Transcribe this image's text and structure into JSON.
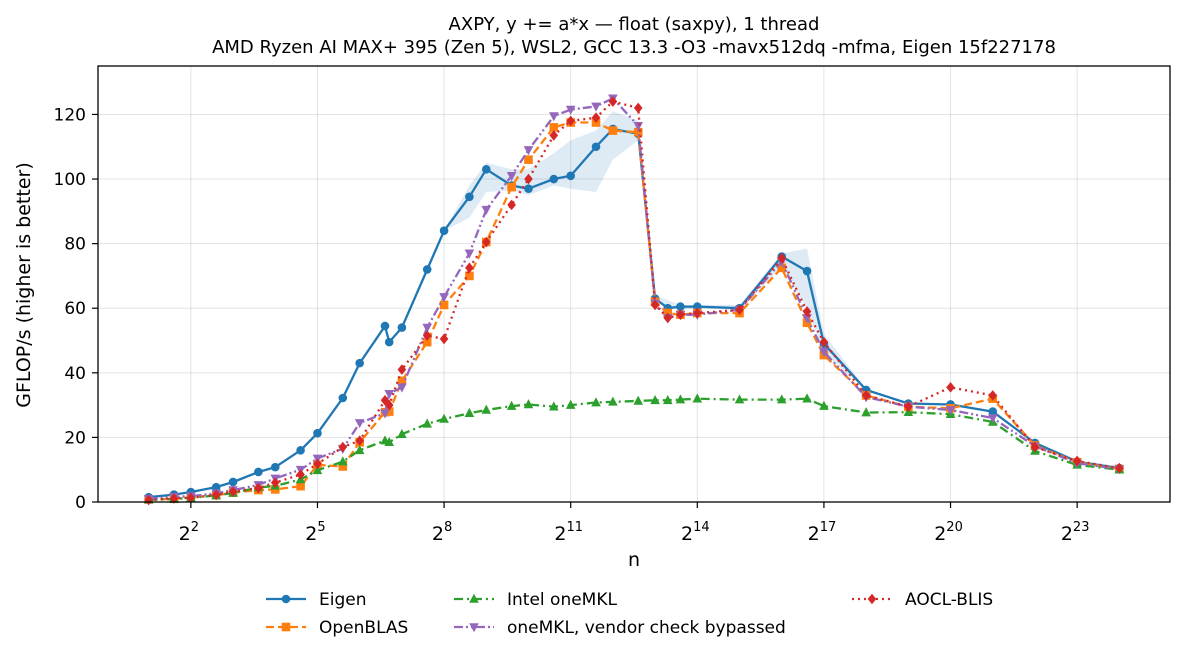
{
  "chart_data": {
    "type": "line",
    "title": "AXPY, y += a*x — float (saxpy), 1 thread",
    "subtitle": "AMD Ryzen AI MAX+ 395 (Zen 5), WSL2, GCC 13.3 -O3 -mavx512dq -mfma, Eigen 15f227178",
    "xlabel": "n",
    "ylabel": "GFLOP/s (higher is better)",
    "xscale": "log2",
    "xlim_log2": [
      -0.2,
      25.2
    ],
    "ylim": [
      0,
      135
    ],
    "x_tick_labels": [
      {
        "exp": 2,
        "base": "2",
        "sup": "2"
      },
      {
        "exp": 5,
        "base": "2",
        "sup": "5"
      },
      {
        "exp": 8,
        "base": "2",
        "sup": "8"
      },
      {
        "exp": 11,
        "base": "2",
        "sup": "11"
      },
      {
        "exp": 14,
        "base": "2",
        "sup": "14"
      },
      {
        "exp": 17,
        "base": "2",
        "sup": "17"
      },
      {
        "exp": 20,
        "base": "2",
        "sup": "20"
      },
      {
        "exp": 23,
        "base": "2",
        "sup": "23"
      }
    ],
    "y_ticks": [
      0,
      20,
      40,
      60,
      80,
      100,
      120
    ],
    "grid": true,
    "legend_position": "bottom-center",
    "series": [
      {
        "name": "Eigen",
        "color": "#1f77b4",
        "marker": "circle",
        "dash": "solid",
        "points": [
          [
            1.0,
            1.5
          ],
          [
            1.6,
            2.3
          ],
          [
            2.0,
            3.1
          ],
          [
            2.6,
            4.6
          ],
          [
            3.0,
            6.2
          ],
          [
            3.6,
            9.3
          ],
          [
            4.0,
            10.8
          ],
          [
            4.6,
            16.0
          ],
          [
            5.0,
            21.3
          ],
          [
            5.6,
            32.2
          ],
          [
            6.0,
            43.0
          ],
          [
            6.6,
            54.5
          ],
          [
            6.7,
            49.5
          ],
          [
            7.0,
            54.0
          ],
          [
            7.6,
            72.0
          ],
          [
            8.0,
            84.0
          ],
          [
            8.6,
            94.5
          ],
          [
            9.0,
            103.0
          ],
          [
            9.6,
            98.0
          ],
          [
            10.0,
            97.0
          ],
          [
            10.6,
            100.0
          ],
          [
            11.0,
            101.0
          ],
          [
            11.6,
            110.0
          ],
          [
            12.0,
            115.5
          ],
          [
            12.6,
            114.0
          ],
          [
            13.0,
            63.0
          ],
          [
            13.3,
            60.0
          ],
          [
            13.6,
            60.5
          ],
          [
            14.0,
            60.5
          ],
          [
            15.0,
            60.0
          ],
          [
            16.0,
            76.0
          ],
          [
            16.6,
            71.5
          ],
          [
            17.0,
            49.0
          ],
          [
            18.0,
            34.7
          ],
          [
            19.0,
            30.5
          ],
          [
            20.0,
            30.2
          ],
          [
            21.0,
            28.0
          ],
          [
            22.0,
            18.3
          ],
          [
            23.0,
            12.5
          ],
          [
            24.0,
            10.5
          ]
        ]
      },
      {
        "name": "OpenBLAS",
        "color": "#ff7f0e",
        "marker": "square",
        "dash": "dashed",
        "points": [
          [
            1.0,
            0.8
          ],
          [
            1.6,
            1.0
          ],
          [
            2.0,
            1.4
          ],
          [
            2.6,
            2.1
          ],
          [
            3.0,
            2.9
          ],
          [
            3.6,
            3.7
          ],
          [
            4.0,
            3.9
          ],
          [
            4.6,
            4.9
          ],
          [
            5.0,
            11.5
          ],
          [
            5.6,
            11.0
          ],
          [
            6.0,
            18.5
          ],
          [
            6.6,
            27.8
          ],
          [
            6.7,
            28.0
          ],
          [
            7.0,
            37.5
          ],
          [
            7.6,
            49.5
          ],
          [
            8.0,
            61.0
          ],
          [
            8.6,
            70.0
          ],
          [
            9.0,
            80.5
          ],
          [
            9.6,
            97.5
          ],
          [
            10.0,
            106.0
          ],
          [
            10.6,
            116.0
          ],
          [
            11.0,
            117.5
          ],
          [
            11.6,
            117.5
          ],
          [
            12.0,
            115.0
          ],
          [
            12.6,
            114.5
          ],
          [
            13.0,
            62.0
          ],
          [
            13.3,
            58.5
          ],
          [
            13.6,
            58.0
          ],
          [
            14.0,
            58.5
          ],
          [
            15.0,
            58.5
          ],
          [
            16.0,
            72.5
          ],
          [
            16.6,
            55.5
          ],
          [
            17.0,
            45.5
          ],
          [
            18.0,
            33.0
          ],
          [
            19.0,
            29.5
          ],
          [
            20.0,
            29.0
          ],
          [
            21.0,
            32.0
          ],
          [
            22.0,
            17.5
          ],
          [
            23.0,
            12.3
          ],
          [
            24.0,
            10.2
          ]
        ]
      },
      {
        "name": "Intel oneMKL",
        "color": "#2ca02c",
        "marker": "triangle-up",
        "dash": "dashdot",
        "points": [
          [
            1.0,
            0.7
          ],
          [
            1.6,
            0.9
          ],
          [
            2.0,
            1.3
          ],
          [
            2.6,
            2.0
          ],
          [
            3.0,
            2.8
          ],
          [
            3.6,
            4.5
          ],
          [
            4.0,
            5.0
          ],
          [
            4.6,
            7.0
          ],
          [
            5.0,
            9.8
          ],
          [
            5.6,
            12.5
          ],
          [
            6.0,
            16.0
          ],
          [
            6.6,
            19.0
          ],
          [
            6.7,
            18.5
          ],
          [
            7.0,
            21.0
          ],
          [
            7.6,
            24.2
          ],
          [
            8.0,
            25.7
          ],
          [
            8.6,
            27.5
          ],
          [
            9.0,
            28.5
          ],
          [
            9.6,
            29.7
          ],
          [
            10.0,
            30.2
          ],
          [
            10.6,
            29.5
          ],
          [
            11.0,
            30.0
          ],
          [
            11.6,
            30.8
          ],
          [
            12.0,
            31.0
          ],
          [
            12.6,
            31.3
          ],
          [
            13.0,
            31.5
          ],
          [
            13.3,
            31.5
          ],
          [
            13.6,
            31.7
          ],
          [
            14.0,
            32.0
          ],
          [
            15.0,
            31.7
          ],
          [
            16.0,
            31.7
          ],
          [
            16.6,
            32.0
          ],
          [
            17.0,
            29.7
          ],
          [
            18.0,
            27.7
          ],
          [
            19.0,
            27.8
          ],
          [
            20.0,
            27.2
          ],
          [
            21.0,
            24.8
          ],
          [
            22.0,
            15.8
          ],
          [
            23.0,
            11.5
          ],
          [
            24.0,
            10.0
          ]
        ]
      },
      {
        "name": "oneMKL, vendor check bypassed",
        "color": "#9467bd",
        "marker": "triangle-down",
        "dash": "dashdotdot",
        "points": [
          [
            1.0,
            1.0
          ],
          [
            1.6,
            1.6
          ],
          [
            2.0,
            1.8
          ],
          [
            2.6,
            2.7
          ],
          [
            3.0,
            3.7
          ],
          [
            3.6,
            5.3
          ],
          [
            4.0,
            7.3
          ],
          [
            4.6,
            10.0
          ],
          [
            5.0,
            13.5
          ],
          [
            5.6,
            16.5
          ],
          [
            6.0,
            24.5
          ],
          [
            6.6,
            27.5
          ],
          [
            6.7,
            33.5
          ],
          [
            7.0,
            35.5
          ],
          [
            7.6,
            54.0
          ],
          [
            8.0,
            63.5
          ],
          [
            8.6,
            77.0
          ],
          [
            9.0,
            90.5
          ],
          [
            9.6,
            101.0
          ],
          [
            10.0,
            109.0
          ],
          [
            10.6,
            119.5
          ],
          [
            11.0,
            121.5
          ],
          [
            11.6,
            122.5
          ],
          [
            12.0,
            125.0
          ],
          [
            12.6,
            116.5
          ],
          [
            13.0,
            61.5
          ],
          [
            13.3,
            57.0
          ],
          [
            13.6,
            58.0
          ],
          [
            14.0,
            58.0
          ],
          [
            15.0,
            59.5
          ],
          [
            16.0,
            74.5
          ],
          [
            16.6,
            57.0
          ],
          [
            17.0,
            46.5
          ],
          [
            18.0,
            32.5
          ],
          [
            19.0,
            29.5
          ],
          [
            20.0,
            28.5
          ],
          [
            21.0,
            26.0
          ],
          [
            22.0,
            17.3
          ],
          [
            23.0,
            12.0
          ],
          [
            24.0,
            10.2
          ]
        ]
      },
      {
        "name": "AOCL-BLIS",
        "color": "#d62728",
        "marker": "diamond",
        "dash": "dotted",
        "points": [
          [
            1.0,
            0.6
          ],
          [
            1.6,
            1.1
          ],
          [
            2.0,
            1.3
          ],
          [
            2.6,
            2.2
          ],
          [
            3.0,
            3.2
          ],
          [
            3.6,
            4.3
          ],
          [
            4.0,
            6.0
          ],
          [
            4.6,
            8.5
          ],
          [
            5.0,
            11.8
          ],
          [
            5.6,
            17.0
          ],
          [
            6.0,
            19.0
          ],
          [
            6.6,
            31.5
          ],
          [
            6.7,
            30.0
          ],
          [
            7.0,
            41.0
          ],
          [
            7.6,
            51.5
          ],
          [
            8.0,
            50.5
          ],
          [
            8.6,
            72.5
          ],
          [
            9.0,
            80.5
          ],
          [
            9.6,
            92.0
          ],
          [
            10.0,
            100.0
          ],
          [
            10.6,
            113.5
          ],
          [
            11.0,
            118.0
          ],
          [
            11.6,
            119.0
          ],
          [
            12.0,
            124.0
          ],
          [
            12.6,
            122.0
          ],
          [
            13.0,
            61.0
          ],
          [
            13.3,
            57.0
          ],
          [
            13.6,
            58.0
          ],
          [
            14.0,
            58.5
          ],
          [
            15.0,
            59.5
          ],
          [
            16.0,
            75.5
          ],
          [
            16.6,
            59.0
          ],
          [
            17.0,
            49.5
          ],
          [
            18.0,
            33.0
          ],
          [
            19.0,
            29.5
          ],
          [
            20.0,
            35.5
          ],
          [
            21.0,
            33.0
          ],
          [
            22.0,
            17.0
          ],
          [
            23.0,
            12.7
          ],
          [
            24.0,
            10.5
          ]
        ]
      }
    ],
    "eigen_band": {
      "upper": [
        [
          8.0,
          84.0
        ],
        [
          8.6,
          98.0
        ],
        [
          9.0,
          105.0
        ],
        [
          9.6,
          103.0
        ],
        [
          10.0,
          103.0
        ],
        [
          10.6,
          108.0
        ],
        [
          11.0,
          112.0
        ],
        [
          11.6,
          115.0
        ],
        [
          12.0,
          121.0
        ],
        [
          12.6,
          118.0
        ],
        [
          13.0,
          64.0
        ],
        [
          13.6,
          61.0
        ],
        [
          14.0,
          61.0
        ],
        [
          15.0,
          61.0
        ],
        [
          16.0,
          77.0
        ],
        [
          16.6,
          78.5
        ],
        [
          17.0,
          52.0
        ],
        [
          18.0,
          35.0
        ]
      ],
      "lower": [
        [
          18.0,
          34.5
        ],
        [
          17.0,
          46.0
        ],
        [
          16.6,
          60.0
        ],
        [
          16.0,
          73.0
        ],
        [
          15.0,
          59.5
        ],
        [
          14.0,
          60.0
        ],
        [
          13.6,
          59.5
        ],
        [
          13.0,
          62.0
        ],
        [
          12.6,
          112.0
        ],
        [
          12.0,
          106.0
        ],
        [
          11.6,
          96.0
        ],
        [
          11.0,
          97.0
        ],
        [
          10.6,
          98.0
        ],
        [
          10.0,
          95.0
        ],
        [
          9.6,
          96.5
        ],
        [
          9.0,
          96.0
        ],
        [
          8.6,
          88.0
        ],
        [
          8.0,
          84.0
        ]
      ]
    }
  }
}
